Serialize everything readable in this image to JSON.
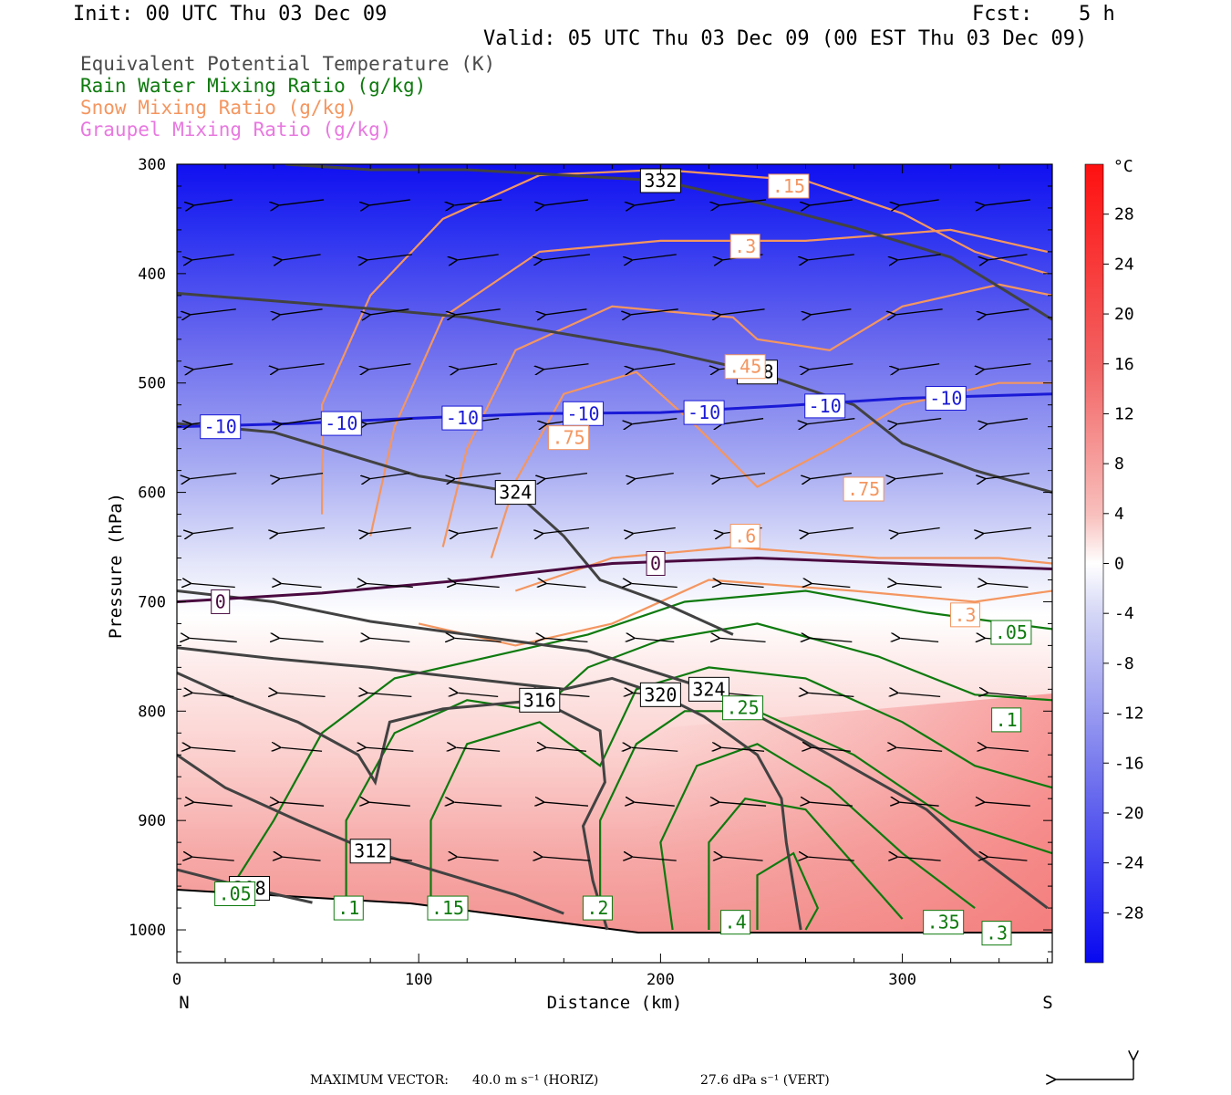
{
  "header": {
    "init": "Init: 00 UTC Thu 03 Dec 09",
    "fcst_label": "Fcst:",
    "fcst_value": "5 h",
    "valid": "Valid: 05 UTC Thu 03 Dec 09 (00 EST Thu 03 Dec 09)"
  },
  "legend": [
    {
      "text": "Equivalent Potential Temperature (K)",
      "color": "#4a4a4a"
    },
    {
      "text": "Rain Water Mixing Ratio (g/kg)",
      "color": "#0e7a0e"
    },
    {
      "text": "Snow Mixing Ratio (g/kg)",
      "color": "#f49660"
    },
    {
      "text": "Graupel Mixing Ratio (g/kg)",
      "color": "#e878e0"
    }
  ],
  "footer": {
    "label": "MAXIMUM VECTOR:",
    "horiz": "40.0 m s⁻¹ (HORIZ)",
    "vert": "27.6 dPa s⁻¹ (VERT)"
  },
  "chart_data": {
    "type": "cross-section",
    "xlabel": "Distance (km)",
    "ylabel": "Pressure (hPa)",
    "xlim": [
      0,
      362
    ],
    "ylim": [
      1030,
      300
    ],
    "xticks": [
      "0",
      "100",
      "200",
      "300"
    ],
    "yticks": [
      "300",
      "400",
      "500",
      "600",
      "700",
      "800",
      "900",
      "1000"
    ],
    "left_end_label": "N",
    "right_end_label": "S",
    "colorbar": {
      "unit": "°C",
      "ticks": [
        "28",
        "24",
        "20",
        "16",
        "12",
        "8",
        "4",
        "0",
        "-4",
        "-8",
        "-12",
        "-16",
        "-20",
        "-24",
        "-28"
      ],
      "range": [
        -32,
        32
      ]
    },
    "theta_e_contours": [
      {
        "label": "308",
        "points": [
          [
            0,
            945
          ],
          [
            30,
            962
          ],
          [
            56,
            975
          ]
        ]
      },
      {
        "label": "312",
        "points": [
          [
            0,
            840
          ],
          [
            20,
            870
          ],
          [
            50,
            900
          ],
          [
            80,
            928
          ],
          [
            110,
            948
          ],
          [
            140,
            968
          ],
          [
            160,
            985
          ]
        ]
      },
      {
        "label": "316",
        "points": [
          [
            0,
            765
          ],
          [
            20,
            785
          ],
          [
            50,
            810
          ],
          [
            75,
            840
          ],
          [
            82,
            865
          ],
          [
            88,
            810
          ],
          [
            110,
            798
          ],
          [
            150,
            790
          ],
          [
            175,
            818
          ],
          [
            177,
            865
          ],
          [
            168,
            905
          ],
          [
            172,
            955
          ],
          [
            178,
            1000
          ]
        ]
      },
      {
        "label": "320",
        "points": [
          [
            0,
            742
          ],
          [
            40,
            752
          ],
          [
            80,
            760
          ],
          [
            120,
            770
          ],
          [
            160,
            780
          ],
          [
            180,
            770
          ],
          [
            200,
            785
          ],
          [
            218,
            805
          ],
          [
            240,
            840
          ],
          [
            250,
            880
          ],
          [
            252,
            920
          ],
          [
            258,
            1000
          ]
        ]
      },
      {
        "label": "324",
        "points": [
          [
            0,
            690
          ],
          [
            40,
            700
          ],
          [
            80,
            718
          ],
          [
            120,
            730
          ],
          [
            170,
            745
          ],
          [
            220,
            780
          ],
          [
            270,
            840
          ],
          [
            310,
            890
          ],
          [
            330,
            930
          ],
          [
            360,
            980
          ]
        ]
      },
      {
        "label": "324",
        "points": [
          [
            0,
            537
          ],
          [
            40,
            545
          ],
          [
            70,
            565
          ],
          [
            100,
            585
          ],
          [
            140,
            600
          ],
          [
            160,
            640
          ],
          [
            175,
            680
          ],
          [
            200,
            700
          ],
          [
            230,
            730
          ]
        ]
      },
      {
        "label": "328",
        "points": [
          [
            0,
            418
          ],
          [
            40,
            425
          ],
          [
            80,
            432
          ],
          [
            120,
            440
          ],
          [
            160,
            455
          ],
          [
            200,
            470
          ],
          [
            240,
            490
          ],
          [
            280,
            520
          ],
          [
            300,
            555
          ],
          [
            330,
            580
          ],
          [
            362,
            600
          ]
        ]
      },
      {
        "label": "332",
        "points": [
          [
            45,
            300
          ],
          [
            80,
            305
          ],
          [
            120,
            305
          ],
          [
            160,
            310
          ],
          [
            200,
            315
          ],
          [
            240,
            335
          ],
          [
            280,
            358
          ],
          [
            320,
            385
          ],
          [
            362,
            442
          ]
        ]
      }
    ],
    "rain_contour_labels": [
      {
        "label": ".05",
        "x": 24,
        "p": 967
      },
      {
        "label": ".1",
        "x": 71,
        "p": 980
      },
      {
        "label": ".15",
        "x": 112,
        "p": 980
      },
      {
        "label": ".2",
        "x": 174,
        "p": 980
      },
      {
        "label": ".25",
        "x": 234,
        "p": 797
      },
      {
        "label": ".3",
        "x": 339,
        "p": 1003
      },
      {
        "label": ".35",
        "x": 317,
        "p": 993
      },
      {
        "label": ".4",
        "x": 231,
        "p": 993
      },
      {
        "label": ".05",
        "x": 345,
        "p": 728
      },
      {
        "label": ".1",
        "x": 343,
        "p": 808
      }
    ],
    "snow_contour_labels": [
      {
        "label": ".15",
        "x": 253,
        "p": 320
      },
      {
        "label": ".3",
        "x": 235,
        "p": 375
      },
      {
        "label": ".45",
        "x": 235,
        "p": 485
      },
      {
        "label": ".6",
        "x": 235,
        "p": 640
      },
      {
        "label": ".75",
        "x": 162,
        "p": 550
      },
      {
        "label": ".75",
        "x": 284,
        "p": 597
      },
      {
        "label": ".3",
        "x": 326,
        "p": 712
      }
    ],
    "isotherms": [
      {
        "label": "-10",
        "points": [
          [
            0,
            540
          ],
          [
            50,
            537
          ],
          [
            100,
            532
          ],
          [
            150,
            528
          ],
          [
            200,
            527
          ],
          [
            250,
            521
          ],
          [
            300,
            514
          ],
          [
            362,
            510
          ]
        ],
        "color": "#1a1ad6"
      },
      {
        "label": "0",
        "points": [
          [
            0,
            700
          ],
          [
            60,
            692
          ],
          [
            120,
            680
          ],
          [
            180,
            665
          ],
          [
            240,
            660
          ],
          [
            300,
            665
          ],
          [
            362,
            670
          ]
        ],
        "color": "#4a0a40"
      }
    ]
  }
}
